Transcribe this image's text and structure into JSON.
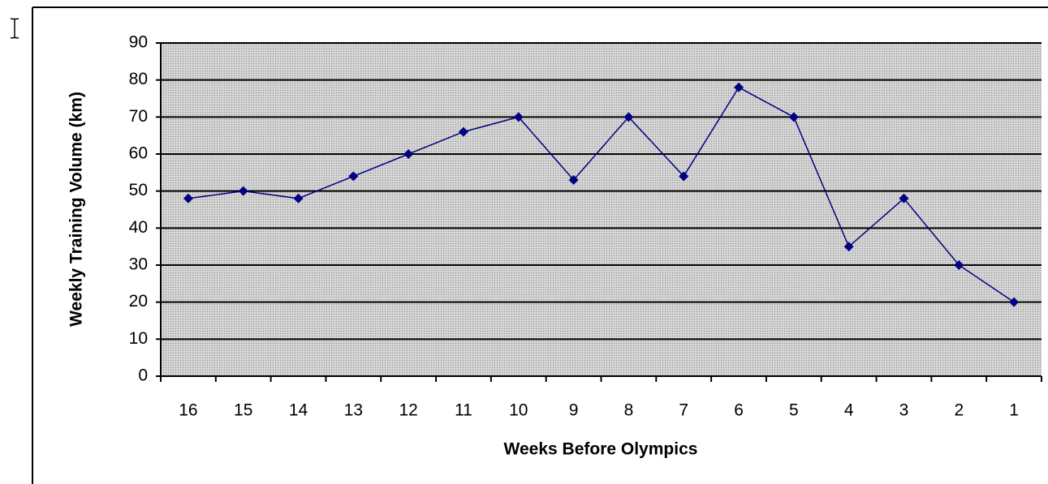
{
  "chart_data": {
    "type": "line",
    "x_label": "Weeks Before Olympics",
    "y_label": "Weekly Training Volume (km)",
    "categories": [
      "16",
      "15",
      "14",
      "13",
      "12",
      "11",
      "10",
      "9",
      "8",
      "7",
      "6",
      "5",
      "4",
      "3",
      "2",
      "1"
    ],
    "values": [
      48,
      50,
      48,
      54,
      60,
      66,
      70,
      53,
      70,
      54,
      78,
      70,
      35,
      48,
      30,
      20
    ],
    "color": "#000080",
    "ylim": [
      0,
      90
    ],
    "yticks": [
      0,
      10,
      20,
      30,
      40,
      50,
      60,
      70,
      80,
      90
    ],
    "grid": true
  }
}
